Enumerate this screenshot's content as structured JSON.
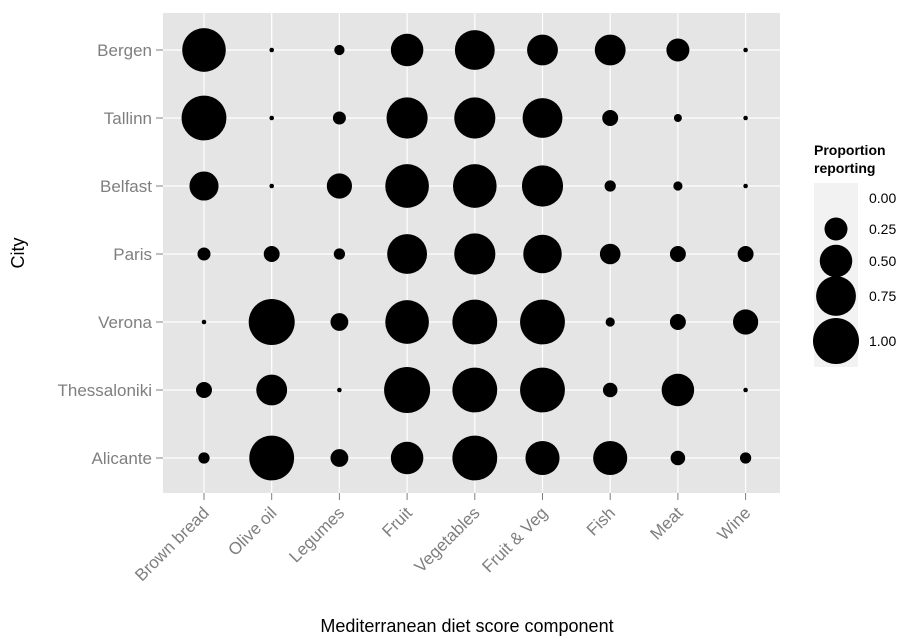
{
  "chart_data": {
    "type": "scatter",
    "xlabel": "Mediterranean diet score component",
    "ylabel": "City",
    "x_categories": [
      "Brown bread",
      "Olive oil",
      "Legumes",
      "Fruit",
      "Vegetables",
      "Fruit & Veg",
      "Fish",
      "Meat",
      "Wine"
    ],
    "y_categories": [
      "Bergen",
      "Tallinn",
      "Belfast",
      "Paris",
      "Verona",
      "Thessaloniki",
      "Alicante"
    ],
    "size_range": [
      0,
      1
    ],
    "grid": true,
    "legend": {
      "title_line1": "Proportion",
      "title_line2": "reporting",
      "placement": "right",
      "entries": [
        {
          "label": "0.00",
          "value": 0.0
        },
        {
          "label": "0.25",
          "value": 0.25
        },
        {
          "label": "0.50",
          "value": 0.5
        },
        {
          "label": "0.75",
          "value": 0.75
        },
        {
          "label": "1.00",
          "value": 1.0
        }
      ]
    },
    "values": [
      [
        0.9,
        0.01,
        0.05,
        0.5,
        0.75,
        0.45,
        0.45,
        0.25,
        0.01
      ],
      [
        0.95,
        0.01,
        0.08,
        0.8,
        0.8,
        0.75,
        0.12,
        0.03,
        0.01
      ],
      [
        0.4,
        0.01,
        0.3,
        0.9,
        0.9,
        0.8,
        0.06,
        0.04,
        0.01
      ],
      [
        0.08,
        0.12,
        0.06,
        0.75,
        0.8,
        0.7,
        0.2,
        0.12,
        0.12
      ],
      [
        0.01,
        1.0,
        0.15,
        0.9,
        0.95,
        0.95,
        0.04,
        0.12,
        0.3
      ],
      [
        0.12,
        0.45,
        0.01,
        1.0,
        0.95,
        0.95,
        0.1,
        0.5,
        0.01
      ],
      [
        0.06,
        0.95,
        0.15,
        0.5,
        0.95,
        0.55,
        0.55,
        0.1,
        0.06
      ]
    ]
  }
}
